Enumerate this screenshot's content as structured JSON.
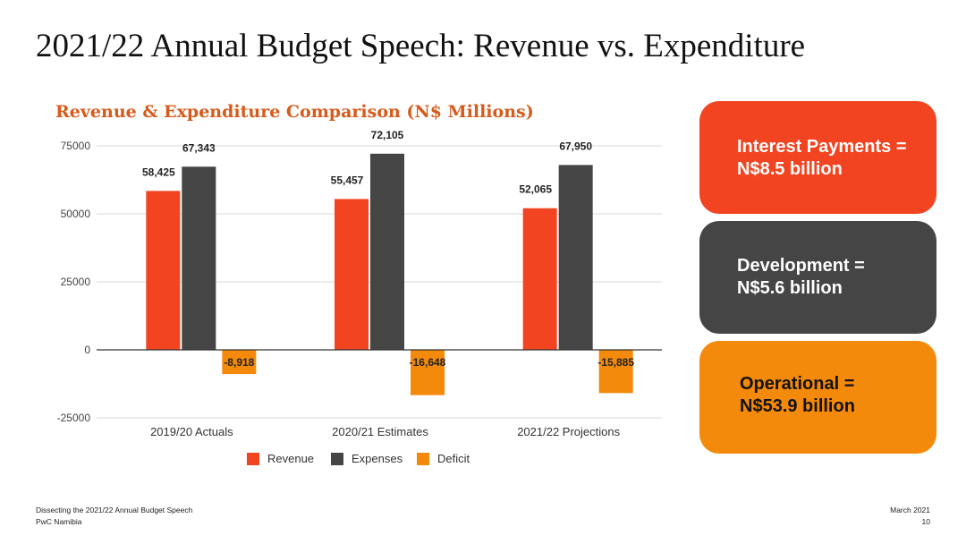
{
  "slide": {
    "title": "2021/22 Annual Budget Speech: Revenue vs. Expenditure"
  },
  "chart_data": {
    "type": "bar",
    "title": "Revenue & Expenditure Comparison (N$ Millions)",
    "categories": [
      "2019/20 Actuals",
      "2020/21 Estimates",
      "2021/22 Projections"
    ],
    "series": [
      {
        "name": "Revenue",
        "values": [
          58425,
          55457,
          52065
        ],
        "labels": [
          "58,425",
          "55,457",
          "52,065"
        ],
        "color": "#f24420"
      },
      {
        "name": "Expenses",
        "values": [
          67343,
          72105,
          67950
        ],
        "labels": [
          "67,343",
          "72,105",
          "67,950"
        ],
        "color": "#454545"
      },
      {
        "name": "Deficit",
        "values": [
          -8918,
          -16648,
          -15885
        ],
        "labels": [
          "-8,918",
          "-16,648",
          "-15,885"
        ],
        "color": "#f48a0b"
      }
    ],
    "y_ticks": [
      "75000",
      "50000",
      "25000",
      "0",
      "-25000"
    ],
    "y_tick_values": [
      75000,
      50000,
      25000,
      0,
      -25000
    ],
    "ylim": [
      -25000,
      75000
    ],
    "grid": true,
    "legend_position": "bottom",
    "xlabel": "",
    "ylabel": ""
  },
  "cards": [
    {
      "line1": "Interest Payments =",
      "line2": "N$8.5 billion",
      "color": "#f24420"
    },
    {
      "line1": "Development =",
      "line2": "N$5.6 billion",
      "color": "#454545"
    },
    {
      "line1": "Operational =",
      "line2": "N$53.9 billion",
      "color": "#f48a0b"
    }
  ],
  "footer": {
    "left_line1": "Dissecting the 2021/22 Annual Budget Speech",
    "left_line2": "PwC Namibia",
    "date": "March 2021",
    "page": "10"
  }
}
